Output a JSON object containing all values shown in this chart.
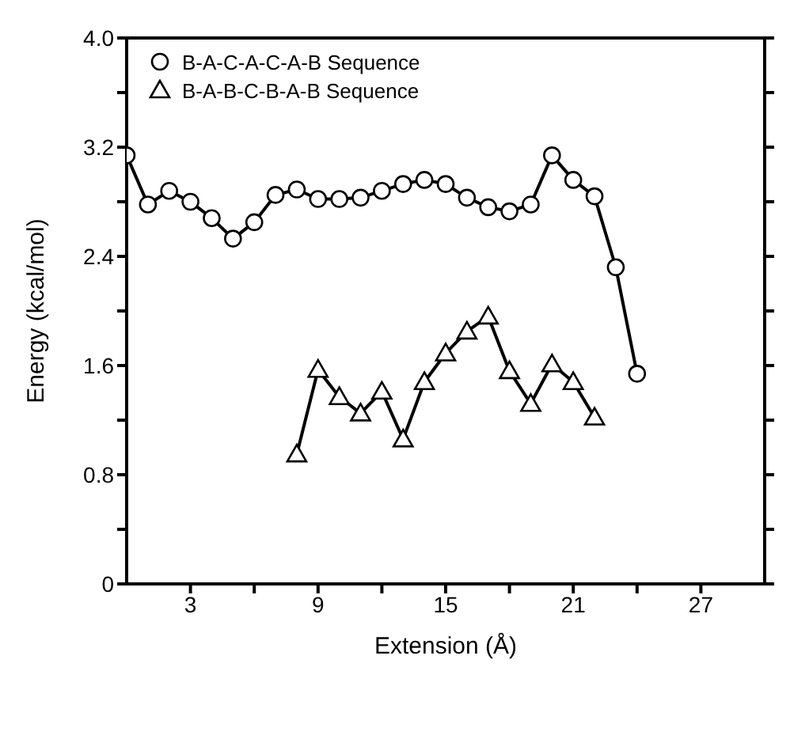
{
  "chart_data": {
    "type": "line",
    "xlabel": "Extension (Å)",
    "ylabel": "Energy  (kcal/mol)",
    "xlim": [
      0,
      30
    ],
    "xticks": [
      3,
      {
        "value": 6,
        "label": null
      },
      9,
      {
        "value": 12,
        "label": null
      },
      15,
      {
        "value": 18,
        "label": null
      },
      21,
      {
        "value": 24,
        "label": null
      },
      27
    ],
    "ylim": [
      0,
      4.0
    ],
    "yticks": [
      {
        "value": 0,
        "label": "0"
      },
      {
        "value": 0.4,
        "label": null
      },
      {
        "value": 0.8,
        "label": "0.8"
      },
      {
        "value": 1.2,
        "label": null
      },
      {
        "value": 1.6,
        "label": "1.6"
      },
      {
        "value": 2.0,
        "label": null
      },
      {
        "value": 2.4,
        "label": "2.4"
      },
      {
        "value": 2.8,
        "label": null
      },
      {
        "value": 3.2,
        "label": "3.2"
      },
      {
        "value": 3.6,
        "label": null
      },
      {
        "value": 4.0,
        "label": "4.0"
      }
    ],
    "grid": false,
    "legend": "top left",
    "line_style": "solid",
    "series": [
      {
        "name": "B-A-C-A-C-A-B  Sequence",
        "color": "#000000",
        "marker": "circle",
        "x": [
          0,
          1,
          2,
          3,
          4,
          5,
          6,
          7,
          8,
          9,
          10,
          11,
          12,
          13,
          14,
          15,
          16,
          17,
          18,
          19,
          20,
          21,
          22,
          23,
          24
        ],
        "values": [
          3.14,
          2.78,
          2.88,
          2.8,
          2.68,
          2.53,
          2.65,
          2.85,
          2.89,
          2.82,
          2.82,
          2.83,
          2.88,
          2.93,
          2.96,
          2.93,
          2.83,
          2.76,
          2.73,
          2.78,
          3.14,
          2.96,
          2.84,
          2.32,
          1.54
        ]
      },
      {
        "name": "B-A-B-C-B-A-B  Sequence",
        "color": "#000000",
        "marker": "triangle",
        "x": [
          8,
          9,
          10,
          11,
          12,
          13,
          14,
          15,
          16,
          17,
          18,
          19,
          20,
          21,
          22
        ],
        "values": [
          0.95,
          1.57,
          1.37,
          1.25,
          1.41,
          1.06,
          1.48,
          1.69,
          1.85,
          1.96,
          1.56,
          1.32,
          1.61,
          1.48,
          1.22
        ]
      }
    ]
  }
}
